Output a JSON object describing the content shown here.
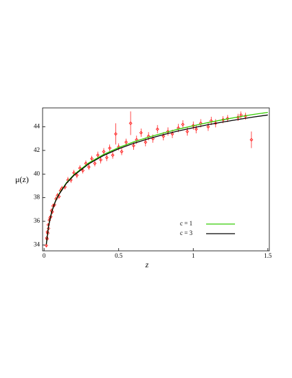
{
  "chart_data": {
    "type": "scatter-lines",
    "x_label": "z",
    "y_label": "μ(z)",
    "xlim": [
      -0.01,
      1.51
    ],
    "ylim": [
      33.5,
      45.6
    ],
    "xticks": [
      0,
      0.5,
      1,
      1.5
    ],
    "yticks": [
      34,
      36,
      38,
      40,
      42,
      44
    ],
    "points": {
      "color": "#ff0000",
      "x": [
        0.015,
        0.018,
        0.02,
        0.022,
        0.025,
        0.028,
        0.03,
        0.035,
        0.04,
        0.045,
        0.05,
        0.055,
        0.06,
        0.07,
        0.08,
        0.09,
        0.1,
        0.11,
        0.12,
        0.14,
        0.16,
        0.18,
        0.2,
        0.22,
        0.24,
        0.26,
        0.28,
        0.3,
        0.32,
        0.34,
        0.36,
        0.38,
        0.4,
        0.42,
        0.44,
        0.46,
        0.48,
        0.5,
        0.52,
        0.55,
        0.58,
        0.6,
        0.62,
        0.65,
        0.68,
        0.7,
        0.73,
        0.76,
        0.8,
        0.83,
        0.86,
        0.9,
        0.93,
        0.96,
        1.0,
        1.02,
        1.05,
        1.1,
        1.12,
        1.15,
        1.2,
        1.23,
        1.3,
        1.32,
        1.35,
        1.39
      ],
      "values": [
        33.95,
        34.6,
        34.5,
        35.1,
        35.0,
        35.7,
        35.4,
        36.1,
        36.3,
        36.4,
        36.9,
        36.8,
        37.3,
        37.4,
        37.9,
        38.2,
        38.1,
        38.6,
        38.8,
        38.9,
        39.5,
        39.5,
        40.1,
        39.9,
        40.5,
        40.3,
        40.9,
        40.6,
        41.3,
        40.9,
        41.6,
        41.2,
        41.9,
        41.4,
        42.2,
        41.6,
        43.4,
        42.3,
        41.9,
        42.7,
        44.3,
        42.4,
        42.9,
        43.5,
        42.7,
        43.2,
        43.0,
        43.8,
        43.2,
        43.6,
        43.4,
        43.9,
        44.2,
        43.6,
        44.1,
        43.8,
        44.3,
        44.0,
        44.5,
        44.3,
        44.6,
        44.7,
        44.8,
        45.0,
        44.9,
        42.9
      ],
      "errors": [
        0.15,
        0.15,
        0.15,
        0.15,
        0.15,
        0.15,
        0.15,
        0.15,
        0.15,
        0.15,
        0.2,
        0.2,
        0.2,
        0.2,
        0.2,
        0.2,
        0.2,
        0.2,
        0.2,
        0.2,
        0.25,
        0.25,
        0.25,
        0.25,
        0.25,
        0.25,
        0.25,
        0.25,
        0.25,
        0.25,
        0.3,
        0.3,
        0.3,
        0.3,
        0.3,
        0.3,
        0.9,
        0.3,
        0.3,
        0.3,
        1.0,
        0.35,
        0.35,
        0.35,
        0.35,
        0.35,
        0.35,
        0.35,
        0.35,
        0.35,
        0.35,
        0.35,
        0.35,
        0.35,
        0.35,
        0.35,
        0.35,
        0.35,
        0.35,
        0.35,
        0.3,
        0.3,
        0.3,
        0.3,
        0.3,
        0.7
      ]
    },
    "series": [
      {
        "name": "c = 1",
        "color": "#33cc00",
        "x": [
          0.015,
          0.03,
          0.05,
          0.075,
          0.1,
          0.15,
          0.2,
          0.3,
          0.4,
          0.5,
          0.6,
          0.7,
          0.8,
          0.9,
          1.0,
          1.1,
          1.2,
          1.3,
          1.4,
          1.5
        ],
        "values": [
          34.06,
          35.6,
          36.77,
          37.69,
          38.32,
          39.27,
          39.95,
          40.95,
          41.67,
          42.24,
          42.72,
          43.12,
          43.48,
          43.8,
          44.09,
          44.36,
          44.6,
          44.83,
          45.04,
          45.22
        ]
      },
      {
        "name": "c = 3",
        "color": "#000000",
        "x": [
          0.015,
          0.03,
          0.05,
          0.075,
          0.1,
          0.15,
          0.2,
          0.3,
          0.4,
          0.5,
          0.6,
          0.7,
          0.8,
          0.9,
          1.0,
          1.1,
          1.2,
          1.3,
          1.4,
          1.5
        ],
        "values": [
          34.06,
          35.59,
          36.75,
          37.66,
          38.28,
          39.22,
          39.89,
          40.87,
          41.58,
          42.14,
          42.6,
          42.99,
          43.34,
          43.65,
          43.92,
          44.18,
          44.41,
          44.62,
          44.82,
          45.0
        ]
      }
    ]
  }
}
